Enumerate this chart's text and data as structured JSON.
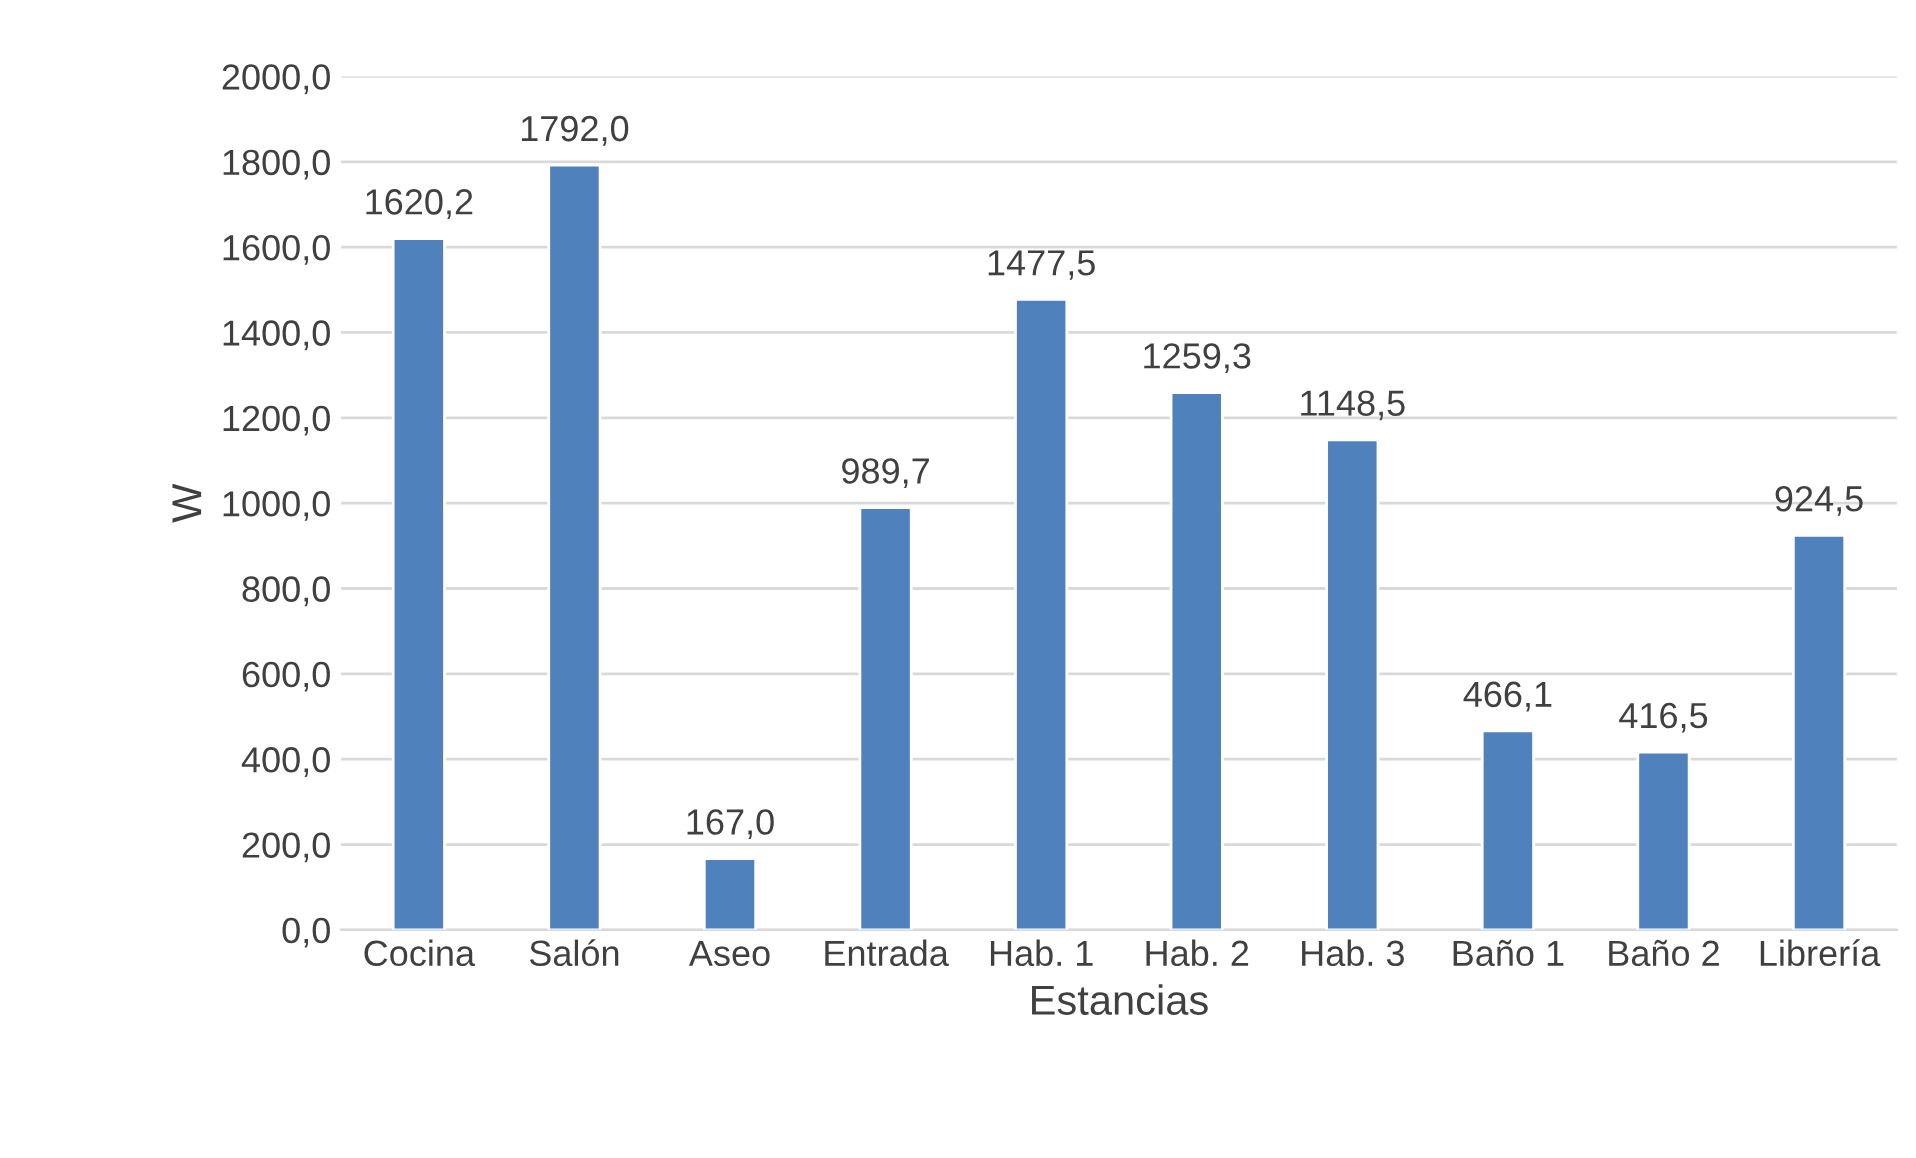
{
  "chart_data": {
    "type": "bar",
    "xlabel": "Estancias",
    "ylabel": "W",
    "categories": [
      "Cocina",
      "Salón",
      "Aseo",
      "Entrada",
      "Hab. 1",
      "Hab. 2",
      "Hab. 3",
      "Baño 1",
      "Baño 2",
      "Librería"
    ],
    "values": [
      1620.2,
      1792.0,
      167.0,
      989.7,
      1477.5,
      1259.3,
      1148.5,
      466.1,
      416.5,
      924.5
    ],
    "value_labels": [
      "1620,2",
      "1792,0",
      "167,0",
      "989,7",
      "1477,5",
      "1259,3",
      "1148,5",
      "466,1",
      "416,5",
      "924,5"
    ],
    "color": "#4f81bd",
    "ylim": [
      0,
      2000
    ],
    "yticks": [
      {
        "value": 0,
        "label": "0,0"
      },
      {
        "value": 200,
        "label": "200,0"
      },
      {
        "value": 400,
        "label": "400,0"
      },
      {
        "value": 600,
        "label": "600,0"
      },
      {
        "value": 800,
        "label": "800,0"
      },
      {
        "value": 1000,
        "label": "1000,0"
      },
      {
        "value": 1200,
        "label": "1200,0"
      },
      {
        "value": 1400,
        "label": "1400,0"
      },
      {
        "value": 1600,
        "label": "1600,0"
      },
      {
        "value": 1800,
        "label": "1800,0"
      },
      {
        "value": 2000,
        "label": "2000,0"
      }
    ],
    "grid": "y",
    "legend": false
  }
}
